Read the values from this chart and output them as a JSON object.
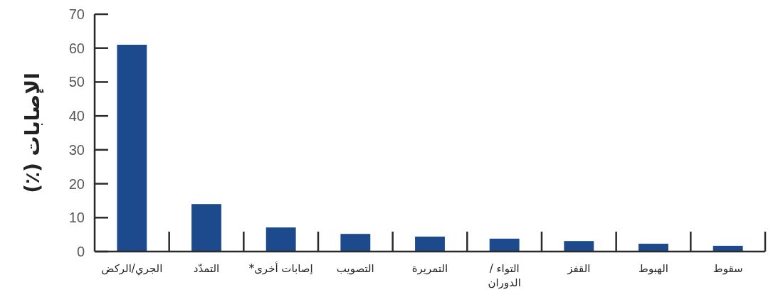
{
  "chart_data": {
    "type": "bar",
    "ylabel": "الإصابات (٪)",
    "categories": [
      "الجري/الركض",
      "التمدّد",
      "إصابات أخرى*",
      "التصويب",
      "التمريرة",
      "التواء /\nالدوران",
      "القفز",
      "الهبوط",
      "سقوط"
    ],
    "values": [
      61,
      14,
      7.1,
      5.2,
      4.4,
      3.8,
      3.1,
      2.3,
      1.7
    ],
    "color": "#1d4a8c",
    "ylim": [
      0,
      70
    ],
    "yticks": [
      0,
      10,
      20,
      30,
      40,
      50,
      60,
      70
    ],
    "grid": false
  }
}
